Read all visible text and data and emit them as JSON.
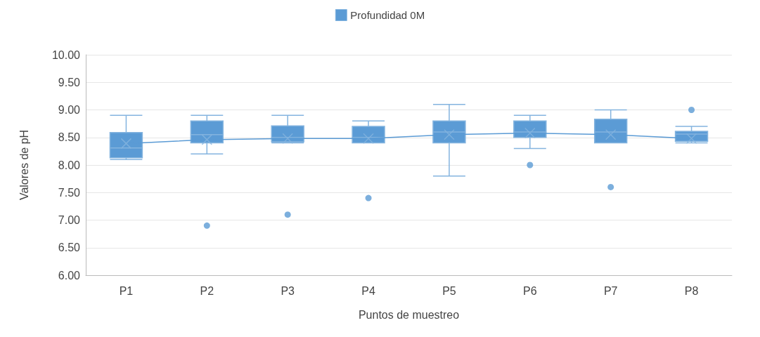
{
  "chart_data": {
    "type": "box",
    "xlabel": "Puntos de muestreo",
    "ylabel": "Valores de pH",
    "categories": [
      "P1",
      "P2",
      "P3",
      "P4",
      "P5",
      "P6",
      "P7",
      "P8"
    ],
    "series": [
      {
        "name": "Profundidad 0M",
        "color": "#5b9bd5",
        "boxes": [
          {
            "low": 8.1,
            "q1": 8.13,
            "median": 8.31,
            "q3": 8.59,
            "high": 8.9,
            "mean": 8.39
          },
          {
            "low": 8.2,
            "q1": 8.4,
            "median": 8.55,
            "q3": 8.8,
            "high": 8.9,
            "mean": 8.46,
            "outliers": [
              6.9
            ]
          },
          {
            "low": 8.4,
            "q1": 8.42,
            "median": 8.5,
            "q3": 8.71,
            "high": 8.9,
            "mean": 8.48,
            "outliers": [
              7.1
            ]
          },
          {
            "low": 8.4,
            "q1": 8.4,
            "median": 8.5,
            "q3": 8.7,
            "high": 8.8,
            "mean": 8.48,
            "outliers": [
              7.4
            ]
          },
          {
            "low": 7.8,
            "q1": 8.4,
            "median": 8.6,
            "q3": 8.8,
            "high": 9.1,
            "mean": 8.55
          },
          {
            "low": 8.3,
            "q1": 8.5,
            "median": 8.6,
            "q3": 8.8,
            "high": 8.9,
            "mean": 8.58,
            "outliers": [
              8.0
            ]
          },
          {
            "low": 8.4,
            "q1": 8.4,
            "median": 8.6,
            "q3": 8.83,
            "high": 9.0,
            "mean": 8.55,
            "outliers": [
              7.6
            ]
          },
          {
            "low": 8.4,
            "q1": 8.43,
            "median": 8.56,
            "q3": 8.61,
            "high": 8.7,
            "mean": 8.48,
            "outliers": [
              9.0
            ]
          }
        ]
      },
      {
        "type": "line",
        "color": "#5b9bd5",
        "values": [
          8.39,
          8.46,
          8.48,
          8.48,
          8.55,
          8.58,
          8.55,
          8.48
        ]
      }
    ],
    "ylim": [
      6,
      10
    ],
    "yticks": [
      {
        "value": 6,
        "label": "6.00"
      },
      {
        "value": 6.5,
        "label": "6.50"
      },
      {
        "value": 7,
        "label": "7.00"
      },
      {
        "value": 7.5,
        "label": "7.50"
      },
      {
        "value": 8,
        "label": "8.00"
      },
      {
        "value": 8.5,
        "label": "8.50"
      },
      {
        "value": 9,
        "label": "9.00"
      },
      {
        "value": 9.5,
        "label": "9.50"
      },
      {
        "value": 10,
        "label": "10.00"
      }
    ],
    "grid": "y",
    "legend": "top"
  }
}
